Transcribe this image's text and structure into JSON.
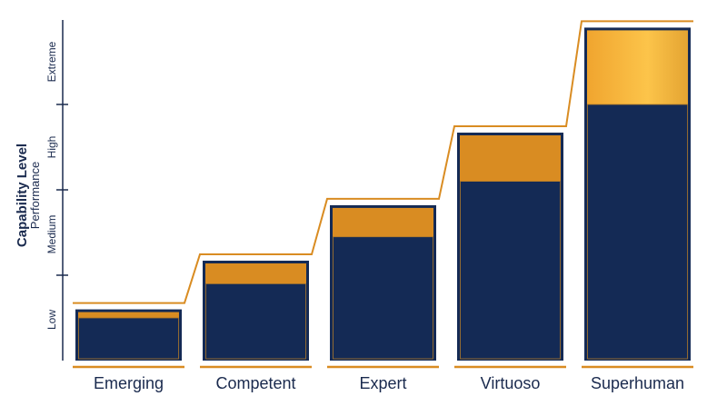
{
  "chart_data": {
    "type": "bar",
    "categories": [
      "Emerging",
      "Competent",
      "Expert",
      "Virtuoso",
      "Superhuman"
    ],
    "series": [
      {
        "values": [
          0.5,
          0.9,
          1.45,
          2.1,
          3.0
        ]
      },
      {
        "values": [
          0.1,
          0.27,
          0.37,
          0.57,
          0.9
        ]
      }
    ],
    "ylabel": "Capability Level",
    "ylabel_sub": "Performance",
    "yticks": [
      "Low",
      "Medium",
      "High",
      "Extreme"
    ],
    "ylim": [
      0,
      4
    ],
    "colors": {
      "navy": "#142a55",
      "gold": "#d98c22",
      "gold_light": "#fcc44a",
      "line": "#d98c22",
      "text": "#1a2a4e"
    }
  }
}
